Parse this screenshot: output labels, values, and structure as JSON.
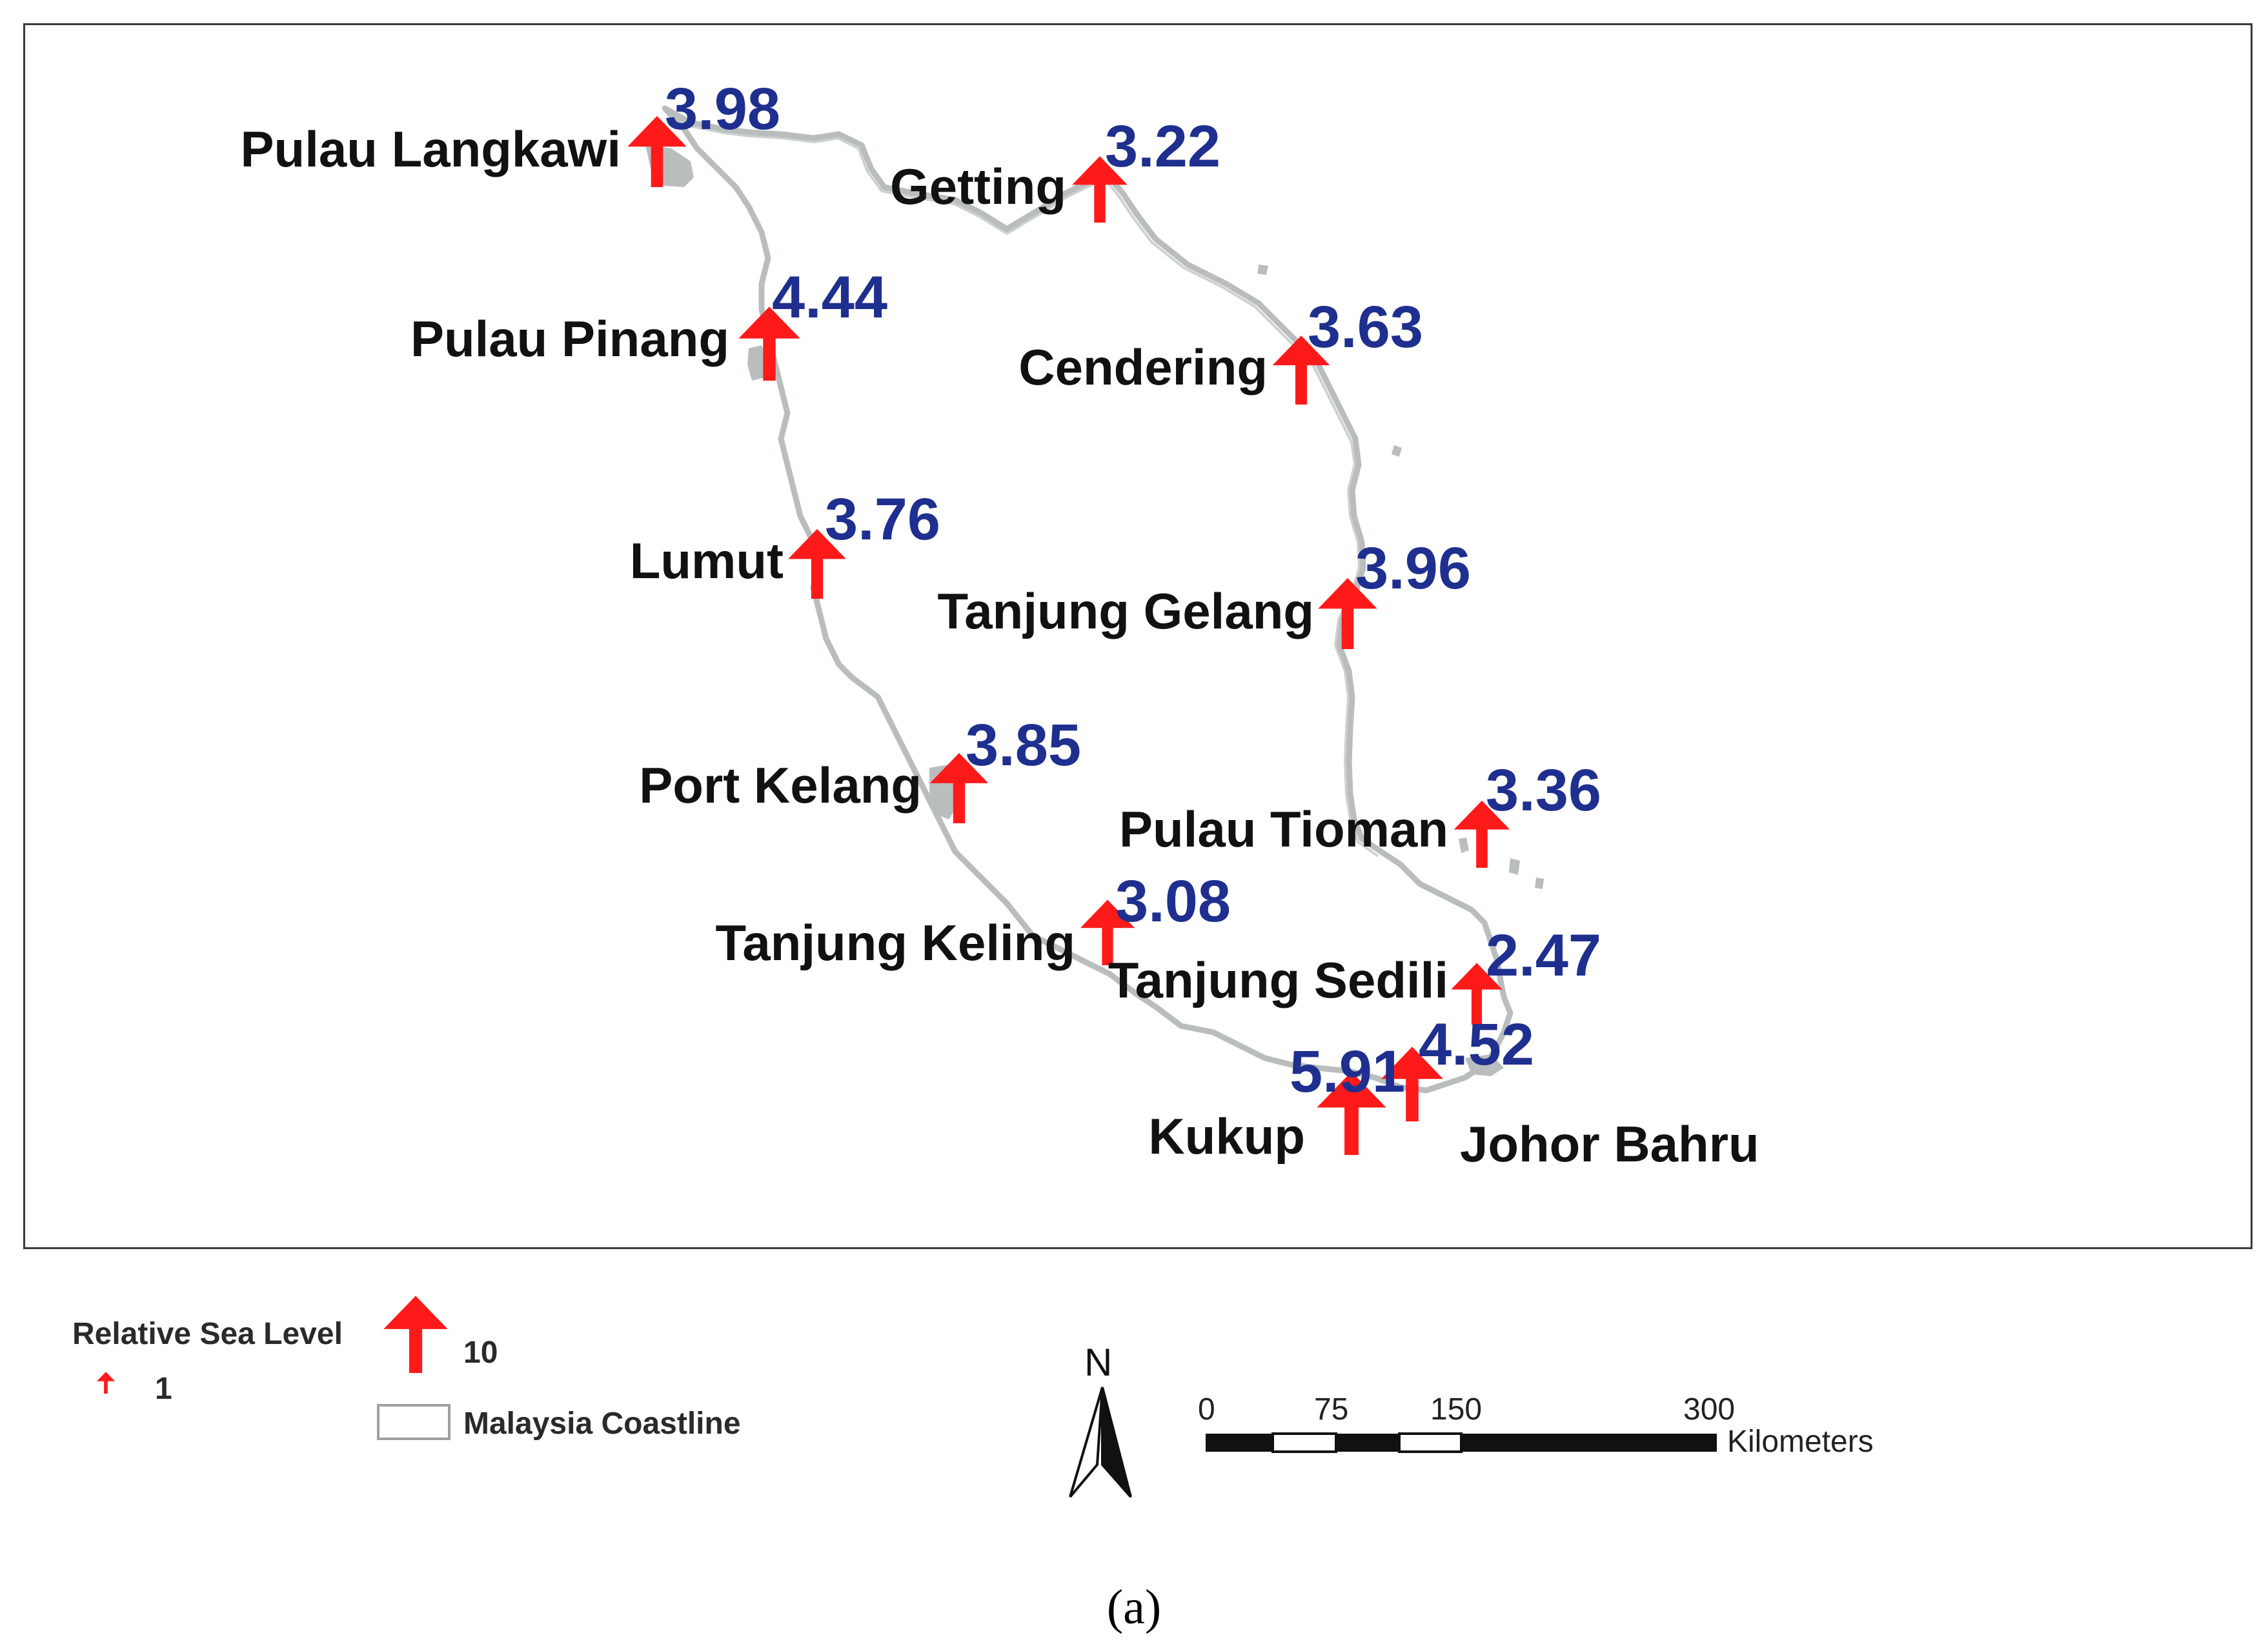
{
  "colors": {
    "arrow": "#ff1a1a",
    "value_text": "#1f2f8f",
    "label_text": "#111111",
    "coastline": "#b9bdbe",
    "frame": "#3a3a3a"
  },
  "stations": [
    {
      "name": "Pulau Langkawi",
      "value": "3.98"
    },
    {
      "name": "Getting",
      "value": "3.22"
    },
    {
      "name": "Pulau Pinang",
      "value": "4.44"
    },
    {
      "name": "Cendering",
      "value": "3.63"
    },
    {
      "name": "Lumut",
      "value": "3.76"
    },
    {
      "name": "Tanjung Gelang",
      "value": "3.96"
    },
    {
      "name": "Port Kelang",
      "value": "3.85"
    },
    {
      "name": "Pulau Tioman",
      "value": "3.36"
    },
    {
      "name": "Tanjung Keling",
      "value": "3.08"
    },
    {
      "name": "Tanjung Sedili",
      "value": "2.47"
    },
    {
      "name": "Johor Bahru",
      "value": "4.52"
    },
    {
      "name": "Kukup",
      "value": "5.91"
    }
  ],
  "legend": {
    "title": "Relative Sea Level",
    "small_value": "1",
    "large_value": "10",
    "coastline_label": "Malaysia Coastline"
  },
  "north_label": "N",
  "scale_bar": {
    "ticks": [
      "0",
      "75",
      "150",
      "300"
    ],
    "unit": "Kilometers"
  },
  "caption": "(a)"
}
